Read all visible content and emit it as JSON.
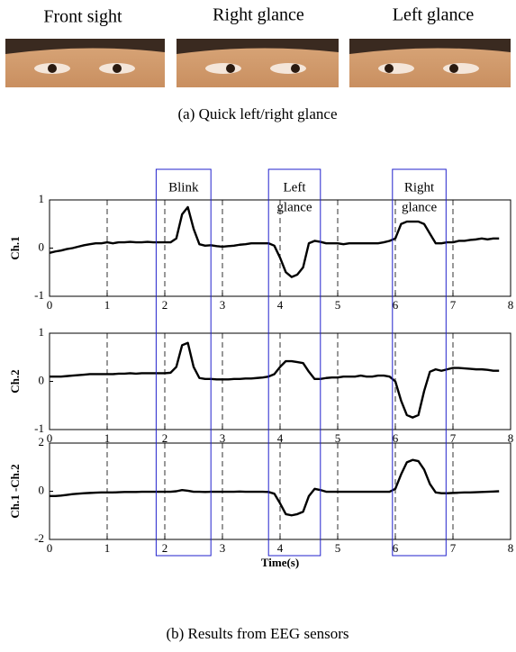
{
  "figure": {
    "photo_labels": [
      "Front sight",
      "Right glance",
      "Left glance"
    ],
    "caption_a": "(a) Quick left/right glance",
    "caption_b": "(b) Results from EEG sensors",
    "annotations": [
      {
        "lines": [
          "Blink"
        ],
        "xlim": [
          1.85,
          2.8
        ]
      },
      {
        "lines": [
          "Left",
          "glance"
        ],
        "xlim": [
          3.8,
          4.7
        ]
      },
      {
        "lines": [
          "Right",
          "glance"
        ],
        "xlim": [
          5.95,
          6.88
        ]
      }
    ]
  },
  "chart_data": [
    {
      "type": "line",
      "ylabel": "Ch.1",
      "color": "#000000",
      "xlim": [
        0,
        8
      ],
      "ylim": [
        -1,
        1
      ],
      "xticks": [
        0,
        1,
        2,
        3,
        4,
        5,
        6,
        7,
        8
      ],
      "yticks": [
        -1,
        0,
        1
      ],
      "grid_x": true,
      "x": [
        0,
        0.1,
        0.2,
        0.3,
        0.4,
        0.5,
        0.6,
        0.7,
        0.8,
        0.9,
        1,
        1.1,
        1.2,
        1.3,
        1.4,
        1.5,
        1.6,
        1.7,
        1.8,
        1.9,
        2,
        2.1,
        2.2,
        2.3,
        2.4,
        2.5,
        2.6,
        2.7,
        2.8,
        2.9,
        3,
        3.1,
        3.2,
        3.3,
        3.4,
        3.5,
        3.6,
        3.7,
        3.8,
        3.9,
        4,
        4.1,
        4.2,
        4.3,
        4.4,
        4.5,
        4.6,
        4.7,
        4.8,
        4.9,
        5,
        5.1,
        5.2,
        5.3,
        5.4,
        5.5,
        5.6,
        5.7,
        5.8,
        5.9,
        6,
        6.1,
        6.2,
        6.3,
        6.4,
        6.5,
        6.6,
        6.7,
        6.8,
        6.9,
        7,
        7.1,
        7.2,
        7.3,
        7.4,
        7.5,
        7.6,
        7.7,
        7.8
      ],
      "values": [
        -0.1,
        -0.07,
        -0.05,
        -0.02,
        0,
        0.03,
        0.06,
        0.08,
        0.1,
        0.1,
        0.12,
        0.1,
        0.12,
        0.12,
        0.13,
        0.12,
        0.12,
        0.13,
        0.12,
        0.12,
        0.12,
        0.12,
        0.2,
        0.7,
        0.85,
        0.4,
        0.08,
        0.05,
        0.06,
        0.04,
        0.03,
        0.04,
        0.05,
        0.07,
        0.08,
        0.1,
        0.1,
        0.1,
        0.1,
        0.05,
        -0.2,
        -0.5,
        -0.6,
        -0.55,
        -0.4,
        0.1,
        0.15,
        0.13,
        0.1,
        0.1,
        0.1,
        0.08,
        0.1,
        0.1,
        0.1,
        0.1,
        0.1,
        0.1,
        0.12,
        0.15,
        0.2,
        0.5,
        0.55,
        0.55,
        0.55,
        0.5,
        0.3,
        0.1,
        0.1,
        0.12,
        0.12,
        0.15,
        0.15,
        0.17,
        0.18,
        0.2,
        0.18,
        0.2,
        0.2
      ]
    },
    {
      "type": "line",
      "ylabel": "Ch.2",
      "color": "#000000",
      "xlim": [
        0,
        8
      ],
      "ylim": [
        -1,
        1
      ],
      "xticks": [
        0,
        1,
        2,
        3,
        4,
        5,
        6,
        7,
        8
      ],
      "yticks": [
        -1,
        0,
        1
      ],
      "grid_x": true,
      "x": [
        0,
        0.1,
        0.2,
        0.3,
        0.4,
        0.5,
        0.6,
        0.7,
        0.8,
        0.9,
        1,
        1.1,
        1.2,
        1.3,
        1.4,
        1.5,
        1.6,
        1.7,
        1.8,
        1.9,
        2,
        2.1,
        2.2,
        2.3,
        2.4,
        2.5,
        2.6,
        2.7,
        2.8,
        2.9,
        3,
        3.1,
        3.2,
        3.3,
        3.4,
        3.5,
        3.6,
        3.7,
        3.8,
        3.9,
        4,
        4.1,
        4.2,
        4.3,
        4.4,
        4.5,
        4.6,
        4.7,
        4.8,
        4.9,
        5,
        5.1,
        5.2,
        5.3,
        5.4,
        5.5,
        5.6,
        5.7,
        5.8,
        5.9,
        6,
        6.1,
        6.2,
        6.3,
        6.4,
        6.5,
        6.6,
        6.7,
        6.8,
        6.9,
        7,
        7.1,
        7.2,
        7.3,
        7.4,
        7.5,
        7.6,
        7.7,
        7.8
      ],
      "values": [
        0.1,
        0.1,
        0.1,
        0.11,
        0.12,
        0.13,
        0.14,
        0.15,
        0.15,
        0.15,
        0.15,
        0.15,
        0.16,
        0.16,
        0.17,
        0.16,
        0.17,
        0.17,
        0.17,
        0.17,
        0.17,
        0.18,
        0.3,
        0.75,
        0.8,
        0.3,
        0.07,
        0.05,
        0.05,
        0.04,
        0.04,
        0.04,
        0.05,
        0.05,
        0.06,
        0.06,
        0.07,
        0.08,
        0.1,
        0.15,
        0.3,
        0.42,
        0.42,
        0.4,
        0.38,
        0.2,
        0.05,
        0.05,
        0.07,
        0.08,
        0.08,
        0.1,
        0.1,
        0.1,
        0.12,
        0.1,
        0.1,
        0.12,
        0.12,
        0.1,
        0,
        -0.4,
        -0.7,
        -0.75,
        -0.7,
        -0.2,
        0.2,
        0.25,
        0.22,
        0.25,
        0.28,
        0.28,
        0.27,
        0.26,
        0.25,
        0.25,
        0.24,
        0.22,
        0.22
      ]
    },
    {
      "type": "line",
      "ylabel": "Ch.1 -Ch.2",
      "xlabel": "Time(s)",
      "color": "#000000",
      "xlim": [
        0,
        8
      ],
      "ylim": [
        -2,
        2
      ],
      "xticks": [
        0,
        1,
        2,
        3,
        4,
        5,
        6,
        7,
        8
      ],
      "yticks": [
        -2,
        0,
        2
      ],
      "grid_x": true,
      "x": [
        0,
        0.1,
        0.2,
        0.3,
        0.4,
        0.5,
        0.6,
        0.7,
        0.8,
        0.9,
        1,
        1.1,
        1.2,
        1.3,
        1.4,
        1.5,
        1.6,
        1.7,
        1.8,
        1.9,
        2,
        2.1,
        2.2,
        2.3,
        2.4,
        2.5,
        2.6,
        2.7,
        2.8,
        2.9,
        3,
        3.1,
        3.2,
        3.3,
        3.4,
        3.5,
        3.6,
        3.7,
        3.8,
        3.9,
        4,
        4.1,
        4.2,
        4.3,
        4.4,
        4.5,
        4.6,
        4.7,
        4.8,
        4.9,
        5,
        5.1,
        5.2,
        5.3,
        5.4,
        5.5,
        5.6,
        5.7,
        5.8,
        5.9,
        6,
        6.1,
        6.2,
        6.3,
        6.4,
        6.5,
        6.6,
        6.7,
        6.8,
        6.9,
        7,
        7.1,
        7.2,
        7.3,
        7.4,
        7.5,
        7.6,
        7.7,
        7.8
      ],
      "values": [
        -0.2,
        -0.2,
        -0.18,
        -0.15,
        -0.12,
        -0.1,
        -0.08,
        -0.07,
        -0.06,
        -0.05,
        -0.05,
        -0.05,
        -0.04,
        -0.03,
        -0.03,
        -0.03,
        -0.02,
        -0.02,
        -0.02,
        -0.02,
        -0.02,
        -0.02,
        0,
        0.05,
        0.02,
        -0.02,
        -0.02,
        -0.03,
        -0.02,
        -0.02,
        -0.02,
        -0.02,
        -0.02,
        -0.01,
        -0.02,
        -0.02,
        -0.02,
        -0.02,
        -0.03,
        -0.1,
        -0.5,
        -0.95,
        -1,
        -0.95,
        -0.85,
        -0.2,
        0.1,
        0.05,
        -0.02,
        -0.02,
        -0.02,
        -0.02,
        -0.02,
        -0.02,
        -0.02,
        -0.02,
        -0.02,
        -0.02,
        -0.02,
        -0.02,
        0.1,
        0.7,
        1.2,
        1.3,
        1.25,
        0.9,
        0.3,
        -0.05,
        -0.08,
        -0.08,
        -0.07,
        -0.06,
        -0.05,
        -0.05,
        -0.04,
        -0.03,
        -0.02,
        -0.01,
        0
      ]
    }
  ]
}
